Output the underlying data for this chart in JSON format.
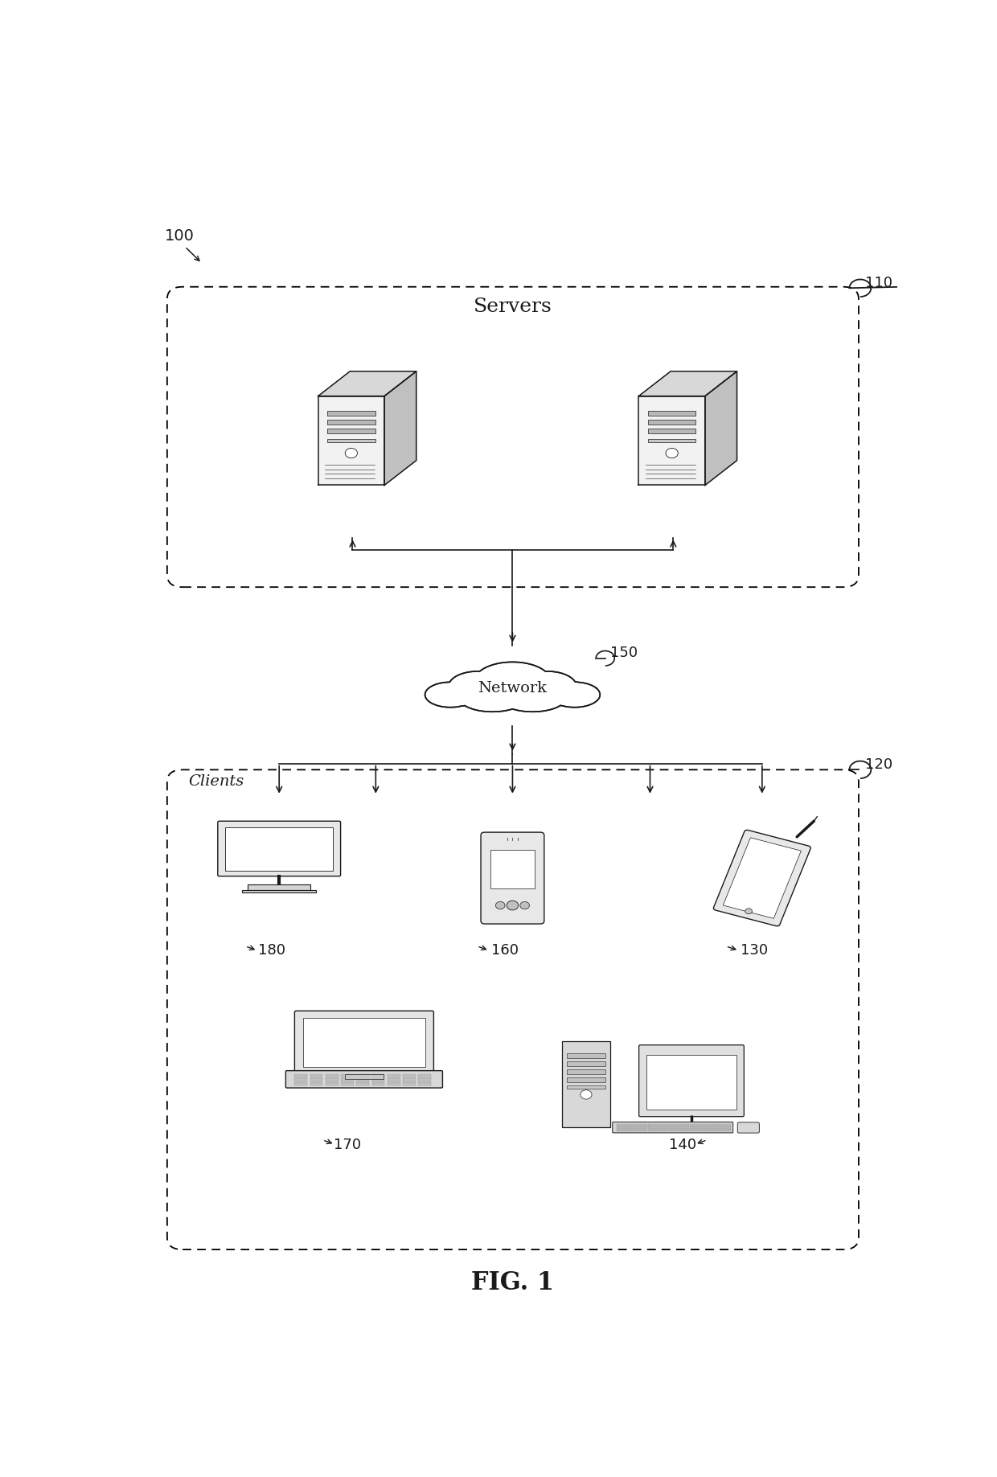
{
  "bg_color": "#ffffff",
  "line_color": "#1a1a1a",
  "fig_width": 12.4,
  "fig_height": 18.37,
  "title": "FIG. 1",
  "label_100": "100",
  "label_110": "110",
  "label_120": "120",
  "label_150": "150",
  "label_servers": "Servers",
  "label_clients": "Clients",
  "label_network": "Network",
  "label_180": "180",
  "label_170": "170",
  "label_160": "160",
  "label_140": "140",
  "label_130": "130",
  "server_face_color": "#f2f2f2",
  "server_top_color": "#d8d8d8",
  "server_side_color": "#c0c0c0"
}
